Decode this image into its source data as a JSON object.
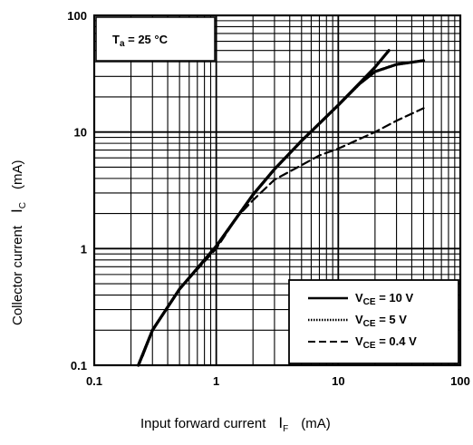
{
  "chart_data": {
    "type": "line",
    "x_scale": "log",
    "y_scale": "log",
    "xlim": [
      0.1,
      100
    ],
    "ylim": [
      0.1,
      100
    ],
    "grid": true,
    "xlabel": {
      "text": "Input forward current",
      "symbol": "I",
      "sub": "F",
      "unit": "(mA)"
    },
    "ylabel": {
      "text": "Collector current",
      "symbol": "I",
      "sub": "C",
      "unit": "(mA)"
    },
    "x_ticks": [
      "0.1",
      "1",
      "10",
      "100"
    ],
    "y_ticks": [
      "0.1",
      "1",
      "10",
      "100"
    ],
    "annotation": {
      "symbol": "T",
      "sub": "a",
      "rest": " = 25 °C"
    },
    "legend_position": "bottom-right",
    "series": [
      {
        "name": "VCE = 10 V",
        "label": {
          "symbol": "V",
          "sub": "CE",
          "rest": " = 10 V"
        },
        "style": "solid",
        "points": [
          [
            0.23,
            0.1
          ],
          [
            0.3,
            0.2
          ],
          [
            0.5,
            0.45
          ],
          [
            1,
            1.05
          ],
          [
            2,
            2.9
          ],
          [
            3,
            4.8
          ],
          [
            5,
            8.4
          ],
          [
            10,
            17
          ],
          [
            20,
            36
          ],
          [
            26,
            50
          ]
        ]
      },
      {
        "name": "VCE = 5 V",
        "label": {
          "symbol": "V",
          "sub": "CE",
          "rest": " = 5 V"
        },
        "style": "dotted",
        "points": [
          [
            0.23,
            0.1
          ],
          [
            0.3,
            0.2
          ],
          [
            0.5,
            0.45
          ],
          [
            1,
            1.05
          ],
          [
            2,
            2.9
          ],
          [
            3,
            4.8
          ],
          [
            5,
            8.4
          ],
          [
            10,
            17
          ],
          [
            15,
            26
          ],
          [
            20,
            33
          ],
          [
            30,
            38
          ],
          [
            50,
            41
          ]
        ]
      },
      {
        "name": "VCE = 0.4 V",
        "label": {
          "symbol": "V",
          "sub": "CE",
          "rest": " = 0.4 V"
        },
        "style": "dashed",
        "points": [
          [
            0.25,
            0.12
          ],
          [
            0.3,
            0.2
          ],
          [
            0.5,
            0.45
          ],
          [
            1,
            1.0
          ],
          [
            1.5,
            1.9
          ],
          [
            2,
            2.6
          ],
          [
            3,
            3.9
          ],
          [
            5,
            5.2
          ],
          [
            7,
            6.3
          ],
          [
            10,
            7.2
          ],
          [
            20,
            10
          ],
          [
            30,
            12.5
          ],
          [
            50,
            16
          ]
        ]
      }
    ]
  }
}
